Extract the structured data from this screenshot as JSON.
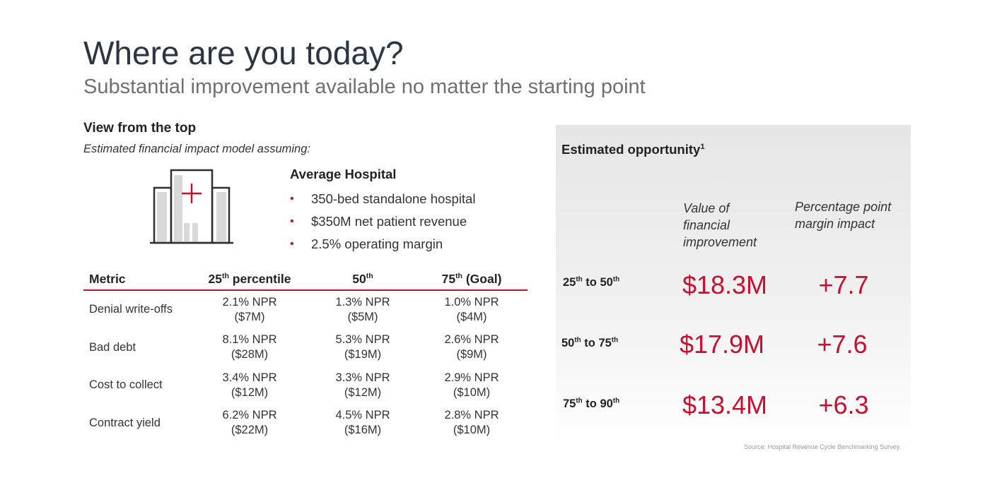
{
  "slide": {
    "title": "Where are you today?",
    "subtitle": "Substantial improvement available no matter the starting point"
  },
  "left": {
    "section_title": "View from the top",
    "section_subtitle": "Estimated financial impact model assuming:",
    "icon": "hospital-icon",
    "hospital": {
      "title": "Average Hospital",
      "bullets": [
        "350-bed standalone hospital",
        "$350M net patient revenue",
        "2.5% operating margin"
      ]
    },
    "table": {
      "headers": [
        {
          "base": "Metric",
          "sup": "",
          "tail": ""
        },
        {
          "base": "25",
          "sup": "th",
          "tail": " percentile"
        },
        {
          "base": "50",
          "sup": "th",
          "tail": ""
        },
        {
          "base": "75",
          "sup": "th",
          "tail": " (Goal)"
        }
      ],
      "rows": [
        {
          "metric": "Denial write-offs",
          "cells": [
            {
              "pct": "2.1% NPR",
              "amt": "($7M)"
            },
            {
              "pct": "1.3% NPR",
              "amt": "($5M)"
            },
            {
              "pct": "1.0% NPR",
              "amt": "($4M)"
            }
          ]
        },
        {
          "metric": "Bad debt",
          "cells": [
            {
              "pct": "8.1% NPR",
              "amt": "($28M)"
            },
            {
              "pct": "5.3% NPR",
              "amt": "($19M)"
            },
            {
              "pct": "2.6% NPR",
              "amt": "($9M)"
            }
          ]
        },
        {
          "metric": "Cost to collect",
          "cells": [
            {
              "pct": "3.4% NPR",
              "amt": "($12M)"
            },
            {
              "pct": "3.3% NPR",
              "amt": "($12M)"
            },
            {
              "pct": "2.9% NPR",
              "amt": "($10M)"
            }
          ]
        },
        {
          "metric": "Contract yield",
          "cells": [
            {
              "pct": "6.2% NPR",
              "amt": "($22M)"
            },
            {
              "pct": "4.5% NPR",
              "amt": "($16M)"
            },
            {
              "pct": "2.8% NPR",
              "amt": "($10M)"
            }
          ]
        }
      ]
    }
  },
  "right": {
    "title": "Estimated opportunity",
    "title_sup": "1",
    "col_value": [
      "Value of",
      "financial",
      "improvement"
    ],
    "col_impact": [
      "Percentage point",
      "margin impact"
    ],
    "rows": [
      {
        "from": "25",
        "from_sup": "th",
        "mid": " to ",
        "to": "50",
        "to_sup": "th",
        "value": "$18.3M",
        "impact": "+7.7"
      },
      {
        "from": "50",
        "from_sup": "th",
        "mid": " to ",
        "to": "75",
        "to_sup": "th",
        "value": "$17.9M",
        "impact": "+7.6"
      },
      {
        "from": "75",
        "from_sup": "th",
        "mid": " to ",
        "to": "90",
        "to_sup": "th",
        "value": "$13.4M",
        "impact": "+6.3"
      }
    ],
    "source": "Source: Hospital Revenue Cycle Benchmarking Survey."
  },
  "colors": {
    "accent": "#c8102e",
    "title": "#2b3642",
    "subtitle": "#707070",
    "icon_stroke": "#2f2f2f",
    "icon_fill": "#d9d9d9"
  }
}
